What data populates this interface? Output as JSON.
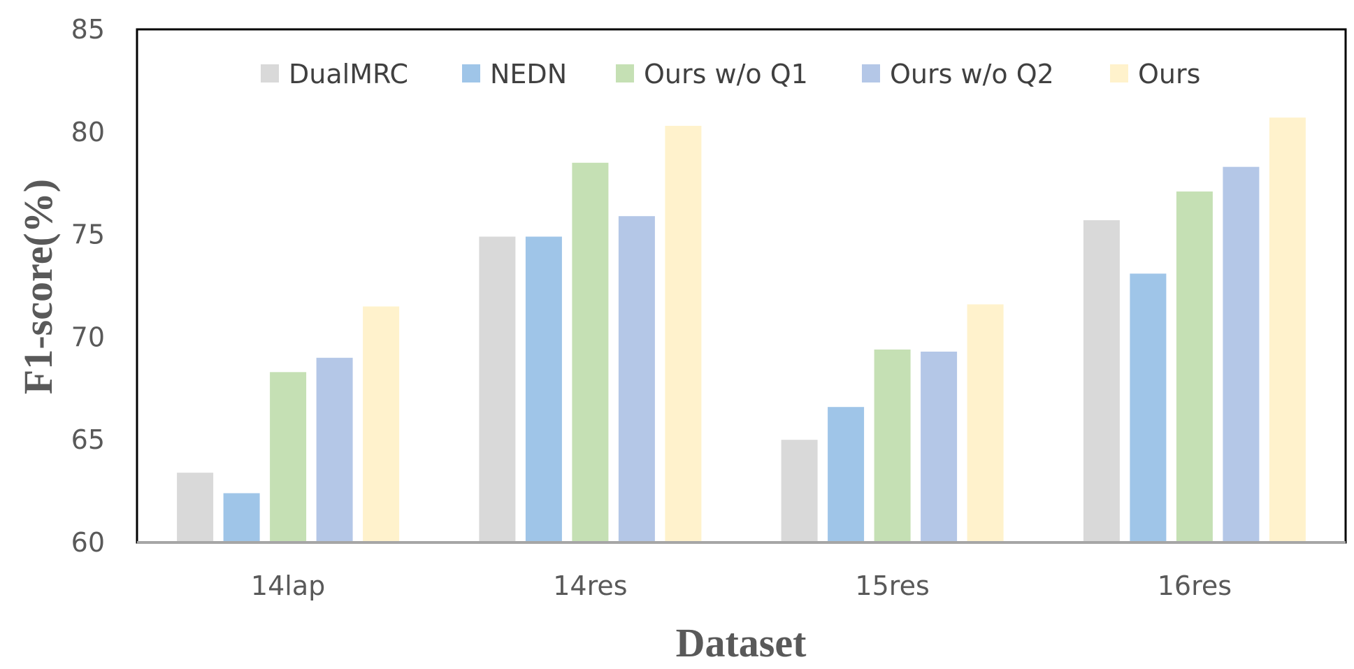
{
  "chart_data": {
    "type": "bar",
    "xlabel": "Dataset",
    "ylabel": "F1-score(%)",
    "ylim": [
      60,
      85
    ],
    "yticks": [
      60,
      65,
      70,
      75,
      80,
      85
    ],
    "grid": false,
    "legend_position": "top-center",
    "categories": [
      "14lap",
      "14res",
      "15res",
      "16res"
    ],
    "series": [
      {
        "name": "DualMRC",
        "color": "#d9d9d9",
        "values": [
          63.4,
          74.9,
          65.0,
          75.7
        ]
      },
      {
        "name": "NEDN",
        "color": "#9fc5e8",
        "values": [
          62.4,
          74.9,
          66.6,
          73.1
        ]
      },
      {
        "name": "Ours w/o Q1",
        "color": "#c5e0b4",
        "values": [
          68.3,
          78.5,
          69.4,
          77.1
        ]
      },
      {
        "name": "Ours w/o Q2",
        "color": "#b4c7e7",
        "values": [
          69.0,
          75.9,
          69.3,
          78.3
        ]
      },
      {
        "name": "Ours",
        "color": "#fff2cc",
        "values": [
          71.5,
          80.3,
          71.6,
          80.7
        ]
      }
    ]
  }
}
